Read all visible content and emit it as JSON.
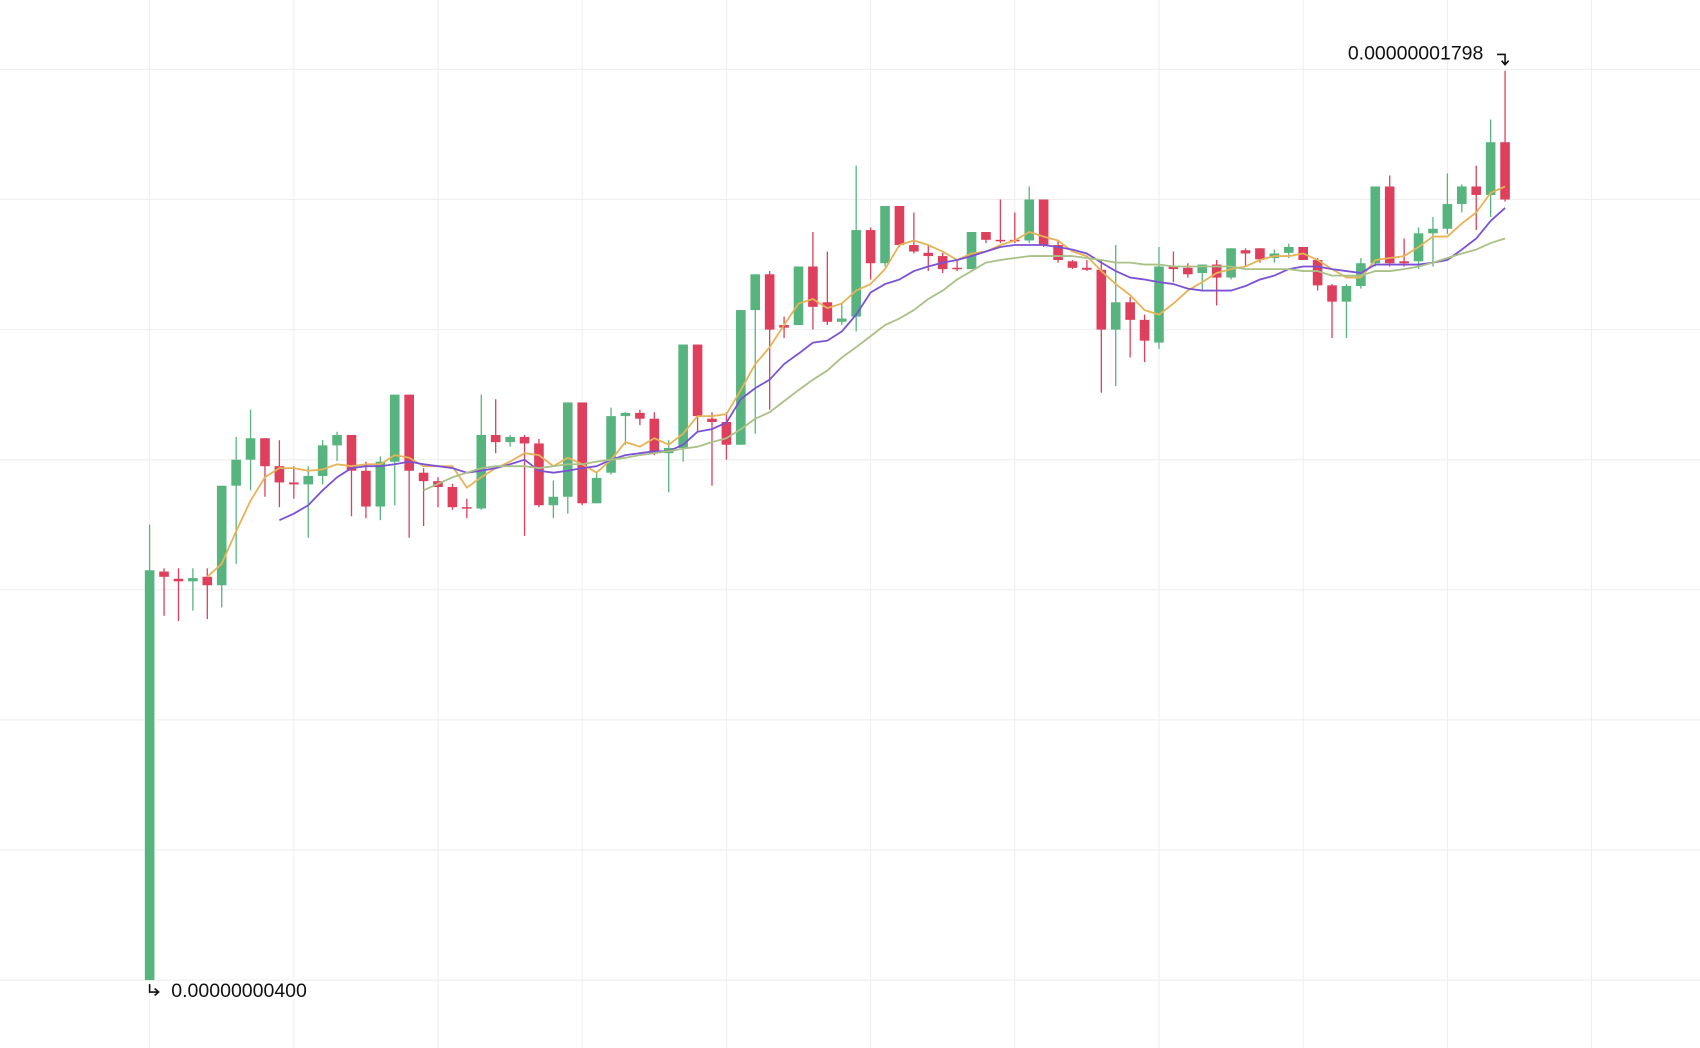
{
  "chart_data": {
    "type": "candlestick",
    "up_color": "#58b47f",
    "down_color": "#dd3f5c",
    "ylim": [
      3e-09,
      1.9e-08
    ],
    "yticks": [
      4e-09,
      6e-09,
      8e-09,
      1e-08,
      1.2e-08,
      1.4e-08,
      1.6e-08,
      1.8e-08
    ],
    "grid": true,
    "open": [
      4e-09,
      1.028e-08,
      1.017e-08,
      1.013e-08,
      1.02e-08,
      1.007e-08,
      1.16e-08,
      1.2e-08,
      1.233e-08,
      1.19e-08,
      1.165e-08,
      1.162e-08,
      1.175e-08,
      1.222e-08,
      1.238e-08,
      1.183e-08,
      1.128e-08,
      1.197e-08,
      1.3e-08,
      1.18e-08,
      1.167e-08,
      1.158e-08,
      1.127e-08,
      1.125e-08,
      1.238e-08,
      1.227e-08,
      1.235e-08,
      1.225e-08,
      1.13e-08,
      1.143e-08,
      1.288e-08,
      1.133e-08,
      1.18e-08,
      1.267e-08,
      1.272e-08,
      1.263e-08,
      1.21e-08,
      1.218e-08,
      1.377e-08,
      1.263e-08,
      1.258e-08,
      1.223e-08,
      1.43e-08,
      1.485e-08,
      1.407e-08,
      1.407e-08,
      1.497e-08,
      1.442e-08,
      1.412e-08,
      1.42e-08,
      1.553e-08,
      1.502e-08,
      1.59e-08,
      1.53e-08,
      1.518e-08,
      1.513e-08,
      1.495e-08,
      1.493e-08,
      1.55e-08,
      1.538e-08,
      1.538e-08,
      1.537e-08,
      1.6e-08,
      1.53e-08,
      1.505e-08,
      1.495e-08,
      1.492e-08,
      1.4e-08,
      1.442e-08,
      1.415e-08,
      1.38e-08,
      1.497e-08,
      1.495e-08,
      1.487e-08,
      1.5e-08,
      1.48e-08,
      1.522e-08,
      1.525e-08,
      1.51e-08,
      1.518e-08,
      1.527e-08,
      1.507e-08,
      1.468e-08,
      1.443e-08,
      1.467e-08,
      1.502e-08,
      1.62e-08,
      1.505e-08,
      1.505e-08,
      1.548e-08,
      1.555e-08,
      1.593e-08,
      1.62e-08,
      1.607e-08,
      1.688e-08
    ],
    "high": [
      1.1e-08,
      1.033e-08,
      1.033e-08,
      1.033e-08,
      1.033e-08,
      1.16e-08,
      1.235e-08,
      1.277e-08,
      1.233e-08,
      1.23e-08,
      1.19e-08,
      1.19e-08,
      1.23e-08,
      1.243e-08,
      1.238e-08,
      1.197e-08,
      1.205e-08,
      1.3e-08,
      1.3e-08,
      1.187e-08,
      1.173e-08,
      1.163e-08,
      1.14e-08,
      1.3e-08,
      1.293e-08,
      1.238e-08,
      1.238e-08,
      1.232e-08,
      1.168e-08,
      1.288e-08,
      1.288e-08,
      1.18e-08,
      1.28e-08,
      1.273e-08,
      1.277e-08,
      1.273e-08,
      1.23e-08,
      1.377e-08,
      1.377e-08,
      1.273e-08,
      1.273e-08,
      1.43e-08,
      1.485e-08,
      1.49e-08,
      1.42e-08,
      1.497e-08,
      1.55e-08,
      1.52e-08,
      1.44e-08,
      1.652e-08,
      1.557e-08,
      1.59e-08,
      1.59e-08,
      1.58e-08,
      1.53e-08,
      1.518e-08,
      1.507e-08,
      1.55e-08,
      1.55e-08,
      1.6e-08,
      1.58e-08,
      1.62e-08,
      1.6e-08,
      1.537e-08,
      1.507e-08,
      1.507e-08,
      1.507e-08,
      1.53e-08,
      1.45e-08,
      1.423e-08,
      1.527e-08,
      1.52e-08,
      1.502e-08,
      1.5e-08,
      1.507e-08,
      1.525e-08,
      1.525e-08,
      1.525e-08,
      1.523e-08,
      1.532e-08,
      1.527e-08,
      1.51e-08,
      1.47e-08,
      1.47e-08,
      1.51e-08,
      1.62e-08,
      1.637e-08,
      1.54e-08,
      1.557e-08,
      1.573e-08,
      1.64e-08,
      1.623e-08,
      1.652e-08,
      1.723e-08,
      1.798e-08
    ],
    "low": [
      4e-09,
      9.6e-09,
      9.52e-09,
      9.68e-09,
      9.55e-09,
      9.73e-09,
      1.04e-08,
      1.153e-08,
      1.143e-08,
      1.127e-08,
      1.14e-08,
      1.08e-08,
      1.162e-08,
      1.198e-08,
      1.113e-08,
      1.11e-08,
      1.107e-08,
      1.13e-08,
      1.08e-08,
      1.098e-08,
      1.127e-08,
      1.123e-08,
      1.11e-08,
      1.123e-08,
      1.21e-08,
      1.22e-08,
      1.083e-08,
      1.127e-08,
      1.11e-08,
      1.117e-08,
      1.13e-08,
      1.133e-08,
      1.177e-08,
      1.223e-08,
      1.253e-08,
      1.207e-08,
      1.15e-08,
      1.197e-08,
      1.243e-08,
      1.16e-08,
      1.2e-08,
      1.223e-08,
      1.24e-08,
      1.277e-08,
      1.387e-08,
      1.407e-08,
      1.4e-08,
      1.407e-08,
      1.407e-08,
      1.397e-08,
      1.477e-08,
      1.497e-08,
      1.527e-08,
      1.517e-08,
      1.49e-08,
      1.487e-08,
      1.49e-08,
      1.493e-08,
      1.533e-08,
      1.533e-08,
      1.533e-08,
      1.533e-08,
      1.527e-08,
      1.503e-08,
      1.493e-08,
      1.49e-08,
      1.303e-08,
      1.313e-08,
      1.357e-08,
      1.35e-08,
      1.37e-08,
      1.473e-08,
      1.48e-08,
      1.46e-08,
      1.437e-08,
      1.477e-08,
      1.497e-08,
      1.503e-08,
      1.503e-08,
      1.51e-08,
      1.507e-08,
      1.46e-08,
      1.387e-08,
      1.387e-08,
      1.463e-08,
      1.497e-08,
      1.497e-08,
      1.497e-08,
      1.493e-08,
      1.497e-08,
      1.547e-08,
      1.58e-08,
      1.553e-08,
      1.573e-08,
      1.597e-08
    ],
    "close": [
      1.03e-08,
      1.02e-08,
      1.013e-08,
      1.018e-08,
      1.007e-08,
      1.16e-08,
      1.2e-08,
      1.233e-08,
      1.19e-08,
      1.165e-08,
      1.162e-08,
      1.175e-08,
      1.222e-08,
      1.238e-08,
      1.183e-08,
      1.128e-08,
      1.197e-08,
      1.3e-08,
      1.183e-08,
      1.167e-08,
      1.158e-08,
      1.127e-08,
      1.125e-08,
      1.238e-08,
      1.227e-08,
      1.235e-08,
      1.225e-08,
      1.13e-08,
      1.143e-08,
      1.288e-08,
      1.133e-08,
      1.172e-08,
      1.267e-08,
      1.272e-08,
      1.263e-08,
      1.21e-08,
      1.218e-08,
      1.377e-08,
      1.267e-08,
      1.258e-08,
      1.223e-08,
      1.43e-08,
      1.485e-08,
      1.4e-08,
      1.403e-08,
      1.497e-08,
      1.435e-08,
      1.412e-08,
      1.417e-08,
      1.553e-08,
      1.502e-08,
      1.59e-08,
      1.53e-08,
      1.52e-08,
      1.513e-08,
      1.493e-08,
      1.493e-08,
      1.55e-08,
      1.538e-08,
      1.537e-08,
      1.537e-08,
      1.6e-08,
      1.53e-08,
      1.507e-08,
      1.495e-08,
      1.492e-08,
      1.4e-08,
      1.442e-08,
      1.415e-08,
      1.383e-08,
      1.497e-08,
      1.493e-08,
      1.485e-08,
      1.5e-08,
      1.48e-08,
      1.525e-08,
      1.517e-08,
      1.508e-08,
      1.517e-08,
      1.527e-08,
      1.507e-08,
      1.468e-08,
      1.443e-08,
      1.467e-08,
      1.502e-08,
      1.62e-08,
      1.502e-08,
      1.502e-08,
      1.548e-08,
      1.555e-08,
      1.593e-08,
      1.62e-08,
      1.607e-08,
      1.688e-08,
      1.6e-08
    ],
    "series": [
      {
        "color": "#e6b356",
        "values": [
          null,
          null,
          null,
          null,
          1.02e-08,
          1.04e-08,
          1.09e-08,
          1.137e-08,
          1.173e-08,
          1.187e-08,
          1.187e-08,
          1.183e-08,
          1.185e-08,
          1.193e-08,
          1.19e-08,
          1.193e-08,
          1.193e-08,
          1.207e-08,
          1.203e-08,
          1.19e-08,
          1.19e-08,
          1.19e-08,
          1.157e-08,
          1.173e-08,
          1.187e-08,
          1.197e-08,
          1.21e-08,
          1.207e-08,
          1.19e-08,
          1.203e-08,
          1.193e-08,
          1.18e-08,
          1.2e-08,
          1.227e-08,
          1.22e-08,
          1.233e-08,
          1.223e-08,
          1.24e-08,
          1.267e-08,
          1.267e-08,
          1.27e-08,
          1.307e-08,
          1.347e-08,
          1.373e-08,
          1.407e-08,
          1.44e-08,
          1.447e-08,
          1.433e-08,
          1.44e-08,
          1.46e-08,
          1.47e-08,
          1.493e-08,
          1.53e-08,
          1.537e-08,
          1.53e-08,
          1.52e-08,
          1.507e-08,
          1.517e-08,
          1.52e-08,
          1.53e-08,
          1.537e-08,
          1.55e-08,
          1.543e-08,
          1.537e-08,
          1.52e-08,
          1.513e-08,
          1.49e-08,
          1.47e-08,
          1.453e-08,
          1.43e-08,
          1.423e-08,
          1.44e-08,
          1.46e-08,
          1.473e-08,
          1.487e-08,
          1.493e-08,
          1.497e-08,
          1.507e-08,
          1.513e-08,
          1.513e-08,
          1.517e-08,
          1.507e-08,
          1.493e-08,
          1.48e-08,
          1.48e-08,
          1.507e-08,
          1.51e-08,
          1.513e-08,
          1.527e-08,
          1.543e-08,
          1.543e-08,
          1.563e-08,
          1.58e-08,
          1.61e-08,
          1.62e-08
        ]
      },
      {
        "color": "#7b52d6",
        "values": [
          null,
          null,
          null,
          null,
          null,
          null,
          null,
          null,
          null,
          1.107e-08,
          1.117e-08,
          1.13e-08,
          1.153e-08,
          1.173e-08,
          1.187e-08,
          1.19e-08,
          1.19e-08,
          1.193e-08,
          1.197e-08,
          1.193e-08,
          1.19e-08,
          1.187e-08,
          1.18e-08,
          1.183e-08,
          1.187e-08,
          1.193e-08,
          1.2e-08,
          1.183e-08,
          1.18e-08,
          1.183e-08,
          1.187e-08,
          1.19e-08,
          1.2e-08,
          1.207e-08,
          1.21e-08,
          1.213e-08,
          1.213e-08,
          1.223e-08,
          1.243e-08,
          1.247e-08,
          1.257e-08,
          1.293e-08,
          1.31e-08,
          1.323e-08,
          1.347e-08,
          1.363e-08,
          1.38e-08,
          1.383e-08,
          1.397e-08,
          1.423e-08,
          1.457e-08,
          1.47e-08,
          1.477e-08,
          1.49e-08,
          1.497e-08,
          1.503e-08,
          1.507e-08,
          1.513e-08,
          1.52e-08,
          1.527e-08,
          1.53e-08,
          1.53e-08,
          1.53e-08,
          1.527e-08,
          1.523e-08,
          1.517e-08,
          1.503e-08,
          1.49e-08,
          1.48e-08,
          1.477e-08,
          1.473e-08,
          1.47e-08,
          1.463e-08,
          1.46e-08,
          1.46e-08,
          1.46e-08,
          1.467e-08,
          1.477e-08,
          1.483e-08,
          1.493e-08,
          1.497e-08,
          1.497e-08,
          1.493e-08,
          1.49e-08,
          1.487e-08,
          1.5e-08,
          1.5e-08,
          1.5e-08,
          1.5e-08,
          1.503e-08,
          1.507e-08,
          1.523e-08,
          1.54e-08,
          1.567e-08,
          1.587e-08
        ]
      },
      {
        "color": "#a9c187",
        "values": [
          null,
          null,
          null,
          null,
          null,
          null,
          null,
          null,
          null,
          null,
          null,
          null,
          null,
          null,
          null,
          null,
          null,
          null,
          null,
          1.153e-08,
          1.163e-08,
          1.173e-08,
          1.18e-08,
          1.187e-08,
          1.19e-08,
          1.19e-08,
          1.19e-08,
          1.187e-08,
          1.19e-08,
          1.193e-08,
          1.193e-08,
          1.197e-08,
          1.2e-08,
          1.203e-08,
          1.207e-08,
          1.21e-08,
          1.213e-08,
          1.217e-08,
          1.22e-08,
          1.227e-08,
          1.233e-08,
          1.247e-08,
          1.263e-08,
          1.273e-08,
          1.29e-08,
          1.307e-08,
          1.323e-08,
          1.337e-08,
          1.357e-08,
          1.373e-08,
          1.39e-08,
          1.407e-08,
          1.417e-08,
          1.43e-08,
          1.447e-08,
          1.46e-08,
          1.477e-08,
          1.49e-08,
          1.503e-08,
          1.507e-08,
          1.51e-08,
          1.513e-08,
          1.513e-08,
          1.513e-08,
          1.513e-08,
          1.51e-08,
          1.507e-08,
          1.503e-08,
          1.503e-08,
          1.5e-08,
          1.5e-08,
          1.497e-08,
          1.497e-08,
          1.497e-08,
          1.497e-08,
          1.497e-08,
          1.493e-08,
          1.493e-08,
          1.493e-08,
          1.493e-08,
          1.49e-08,
          1.49e-08,
          1.483e-08,
          1.483e-08,
          1.483e-08,
          1.49e-08,
          1.49e-08,
          1.493e-08,
          1.497e-08,
          1.503e-08,
          1.51e-08,
          1.517e-08,
          1.523e-08,
          1.533e-08,
          1.54e-08
        ]
      }
    ],
    "annotations": [
      {
        "text": "0.00000001798",
        "value": 1.798e-08,
        "side": "high"
      },
      {
        "text": "0.00000000400",
        "value": 4e-09,
        "side": "low"
      }
    ]
  }
}
